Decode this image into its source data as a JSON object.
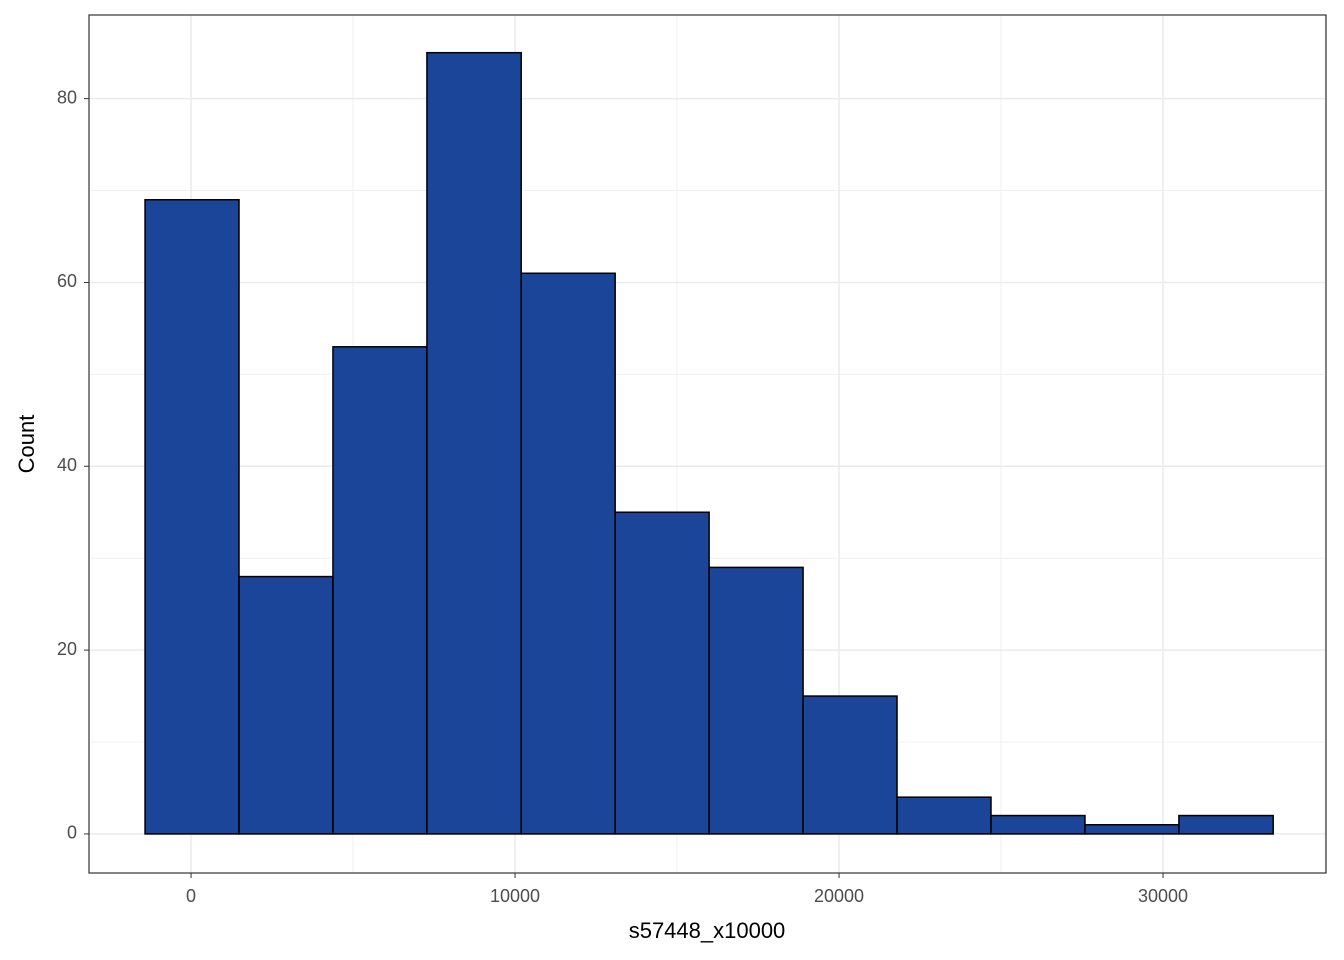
{
  "chart_data": {
    "type": "histogram",
    "x_label": "s57448_x10000",
    "y_label": "Count",
    "bins": [
      -1420,
      1480,
      4380,
      7280,
      10190,
      13090,
      15990,
      18890,
      21790,
      24690,
      27590,
      30490,
      33400
    ],
    "values": [
      69,
      28,
      53,
      85,
      61,
      35,
      29,
      15,
      4,
      2,
      1,
      2
    ],
    "color": "#1a4599",
    "xlim": [
      -3150,
      35030
    ],
    "ylim": [
      -4.25,
      89.1
    ],
    "xticks": [
      0,
      10000,
      20000,
      30000
    ],
    "yticks": [
      0,
      20,
      40,
      60,
      80
    ],
    "grid": true
  }
}
